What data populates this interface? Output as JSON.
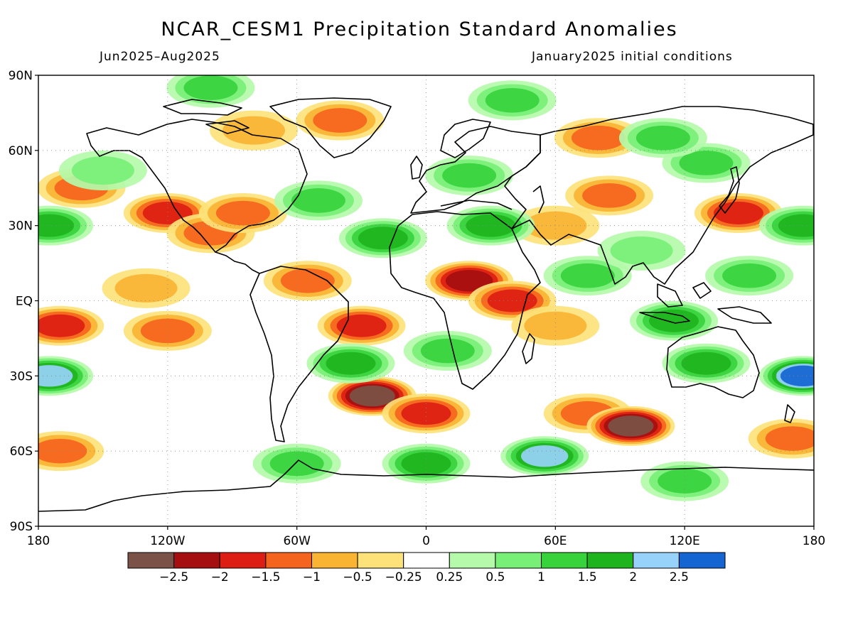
{
  "title": "NCAR_CESM1 Precipitation Standard Anomalies",
  "subtitle_left": "Jun2025–Aug2025",
  "subtitle_right": "January2025 initial conditions",
  "axes": {
    "lat_labels": [
      "90N",
      "60N",
      "30N",
      "EQ",
      "30S",
      "60S",
      "90S"
    ],
    "lat_values": [
      90,
      60,
      30,
      0,
      -30,
      -60,
      -90
    ],
    "lon_labels": [
      "180",
      "120W",
      "60W",
      "0",
      "60E",
      "120E",
      "180"
    ],
    "lon_values": [
      -180,
      -120,
      -60,
      0,
      60,
      120,
      180
    ]
  },
  "colorbar": {
    "colors": [
      "#7b5247",
      "#a50f0f",
      "#dc1e14",
      "#f5641e",
      "#fab434",
      "#fde27a",
      "#ffffff",
      "#b4faaa",
      "#78f078",
      "#37d23c",
      "#1eb41e",
      "#96d2fa",
      "#1464d2"
    ],
    "labels": [
      "−2.5",
      "−2",
      "−1.5",
      "−1",
      "−0.5",
      "−0.25",
      "0.25",
      "0.5",
      "1",
      "1.5",
      "2",
      "2.5"
    ]
  },
  "chart_data": {
    "type": "heatmap",
    "title": "NCAR_CESM1 Precipitation Standard Anomalies",
    "period": "Jun2025–Aug2025",
    "initial_conditions": "January2025 initial conditions",
    "lon_range": [
      -180,
      180
    ],
    "lat_range": [
      -90,
      90
    ],
    "levels": [
      -2.5,
      -2,
      -1.5,
      -1,
      -0.5,
      -0.25,
      0.25,
      0.5,
      1,
      1.5,
      2,
      2.5
    ],
    "regions": [
      {
        "lon": -160,
        "lat": 45,
        "value": -1.0
      },
      {
        "lon": -120,
        "lat": 35,
        "value": -1.6
      },
      {
        "lon": -100,
        "lat": 27,
        "value": -1.4
      },
      {
        "lon": -85,
        "lat": 35,
        "value": -1.4
      },
      {
        "lon": -80,
        "lat": 68,
        "value": -0.8
      },
      {
        "lon": -40,
        "lat": 72,
        "value": -1.2
      },
      {
        "lon": -170,
        "lat": -10,
        "value": -1.8
      },
      {
        "lon": -120,
        "lat": -12,
        "value": -1.0
      },
      {
        "lon": -130,
        "lat": 5,
        "value": -0.6
      },
      {
        "lon": -55,
        "lat": 8,
        "value": -1.2
      },
      {
        "lon": -30,
        "lat": -10,
        "value": -1.8
      },
      {
        "lon": -25,
        "lat": -38,
        "value": -2.8
      },
      {
        "lon": 0,
        "lat": -45,
        "value": -1.6
      },
      {
        "lon": 20,
        "lat": 8,
        "value": -2.0
      },
      {
        "lon": 40,
        "lat": 0,
        "value": -1.6
      },
      {
        "lon": 60,
        "lat": -10,
        "value": -0.8
      },
      {
        "lon": 75,
        "lat": -45,
        "value": -1.4
      },
      {
        "lon": 95,
        "lat": -50,
        "value": -2.6
      },
      {
        "lon": 60,
        "lat": 30,
        "value": -0.8
      },
      {
        "lon": 85,
        "lat": 42,
        "value": -1.2
      },
      {
        "lon": 145,
        "lat": 35,
        "value": -1.8
      },
      {
        "lon": 80,
        "lat": 65,
        "value": -1.0
      },
      {
        "lon": -170,
        "lat": -60,
        "value": -1.4
      },
      {
        "lon": 170,
        "lat": -55,
        "value": -1.2
      },
      {
        "lon": -150,
        "lat": 52,
        "value": 0.9
      },
      {
        "lon": 30,
        "lat": 30,
        "value": 1.5
      },
      {
        "lon": 20,
        "lat": 50,
        "value": 1.2
      },
      {
        "lon": 75,
        "lat": 10,
        "value": 1.4
      },
      {
        "lon": 130,
        "lat": -25,
        "value": 1.8
      },
      {
        "lon": 115,
        "lat": -8,
        "value": 1.6
      },
      {
        "lon": -175,
        "lat": -30,
        "value": 2.3
      },
      {
        "lon": -175,
        "lat": 30,
        "value": 1.8
      },
      {
        "lon": 175,
        "lat": 30,
        "value": 1.6
      },
      {
        "lon": 175,
        "lat": -30,
        "value": 2.5
      },
      {
        "lon": 55,
        "lat": -62,
        "value": 2.4
      },
      {
        "lon": 0,
        "lat": -65,
        "value": 1.5
      },
      {
        "lon": -60,
        "lat": -65,
        "value": 1.2
      },
      {
        "lon": 120,
        "lat": -72,
        "value": 1.2
      },
      {
        "lon": -20,
        "lat": 25,
        "value": 1.5
      },
      {
        "lon": -35,
        "lat": -25,
        "value": 1.6
      },
      {
        "lon": 130,
        "lat": 55,
        "value": 1.4
      },
      {
        "lon": 110,
        "lat": 65,
        "value": 1.0
      },
      {
        "lon": -50,
        "lat": 40,
        "value": 1.4
      },
      {
        "lon": 10,
        "lat": -20,
        "value": 1.0
      },
      {
        "lon": 100,
        "lat": 20,
        "value": 0.9
      },
      {
        "lon": 150,
        "lat": 10,
        "value": 1.2
      },
      {
        "lon": -100,
        "lat": 85,
        "value": 1.0
      },
      {
        "lon": 40,
        "lat": 80,
        "value": 1.0
      }
    ]
  }
}
